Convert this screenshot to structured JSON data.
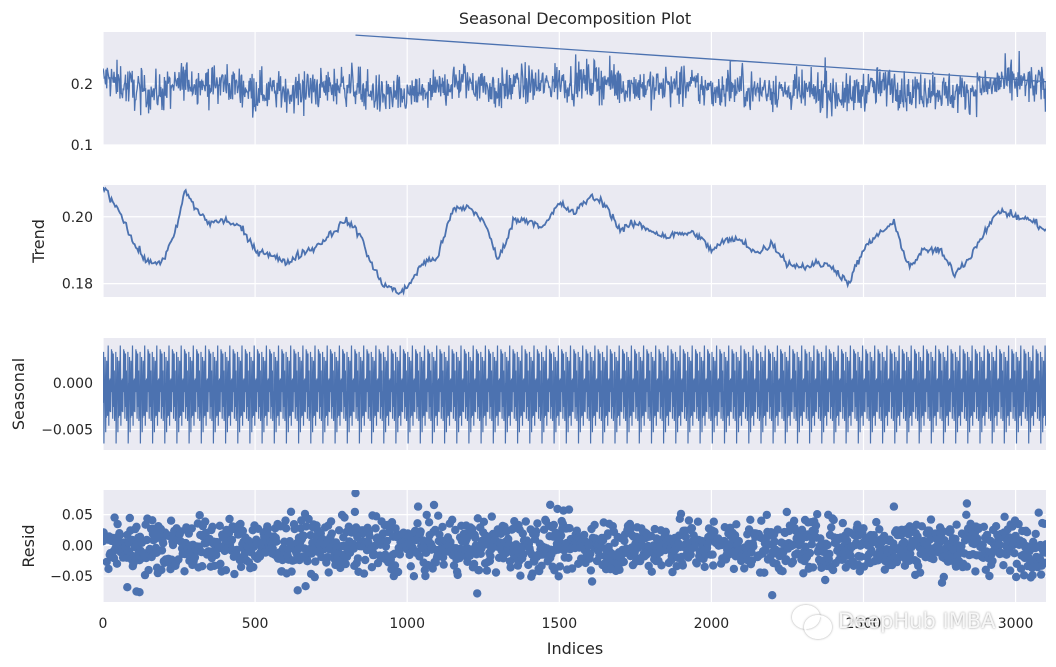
{
  "chart_data": [
    {
      "type": "line",
      "title": "Seasonal Decomposition Plot",
      "ylabel": "",
      "xlim": [
        0,
        3100
      ],
      "ylim": [
        0.1,
        0.285
      ],
      "yticks": [
        {
          "value": 0.1,
          "label": "0.1"
        },
        {
          "value": 0.2,
          "label": "0.2"
        }
      ],
      "series": [
        {
          "x": [
            0,
            100,
            200,
            300,
            400,
            500,
            600,
            700,
            800,
            900,
            1000,
            1100,
            1200,
            1300,
            1400,
            1500,
            1600,
            1700,
            1800,
            1900,
            2000,
            2100,
            2200,
            2300,
            2400,
            2500,
            2600,
            2700,
            2800,
            2900,
            3000,
            3100
          ],
          "y": [
            0.21,
            0.19,
            0.2,
            0.2,
            0.19,
            0.19,
            0.19,
            0.19,
            0.2,
            0.19,
            0.18,
            0.19,
            0.2,
            0.2,
            0.19,
            0.2,
            0.2,
            0.2,
            0.19,
            0.19,
            0.19,
            0.19,
            0.19,
            0.19,
            0.18,
            0.19,
            0.19,
            0.19,
            0.19,
            0.2,
            0.2,
            0.2
          ]
        }
      ]
    },
    {
      "type": "line",
      "ylabel": "Trend",
      "xlim": [
        0,
        3100
      ],
      "ylim": [
        0.176,
        0.2095
      ],
      "yticks": [
        {
          "value": 0.18,
          "label": "0.18"
        },
        {
          "value": 0.2,
          "label": "0.20"
        }
      ],
      "series": [
        {
          "x": [
            0,
            30,
            60,
            100,
            150,
            200,
            240,
            270,
            300,
            350,
            400,
            450,
            500,
            550,
            600,
            650,
            700,
            750,
            800,
            850,
            880,
            920,
            960,
            980,
            1000,
            1050,
            1100,
            1150,
            1200,
            1250,
            1300,
            1350,
            1400,
            1450,
            1500,
            1550,
            1600,
            1650,
            1700,
            1750,
            1800,
            1850,
            1900,
            1950,
            2000,
            2050,
            2100,
            2150,
            2200,
            2250,
            2300,
            2350,
            2400,
            2450,
            2500,
            2550,
            2600,
            2650,
            2700,
            2750,
            2800,
            2850,
            2900,
            2950,
            3000,
            3050,
            3100
          ],
          "y": [
            0.209,
            0.205,
            0.201,
            0.192,
            0.186,
            0.187,
            0.196,
            0.208,
            0.203,
            0.198,
            0.199,
            0.197,
            0.19,
            0.189,
            0.186,
            0.189,
            0.191,
            0.195,
            0.199,
            0.194,
            0.186,
            0.18,
            0.178,
            0.177,
            0.179,
            0.186,
            0.188,
            0.202,
            0.203,
            0.199,
            0.187,
            0.199,
            0.199,
            0.197,
            0.204,
            0.201,
            0.206,
            0.204,
            0.196,
            0.198,
            0.196,
            0.194,
            0.195,
            0.195,
            0.19,
            0.193,
            0.193,
            0.189,
            0.192,
            0.186,
            0.185,
            0.186,
            0.185,
            0.18,
            0.19,
            0.195,
            0.198,
            0.185,
            0.19,
            0.19,
            0.183,
            0.188,
            0.196,
            0.202,
            0.2,
            0.199,
            0.196
          ]
        }
      ]
    },
    {
      "type": "line",
      "ylabel": "Seasonal",
      "xlim": [
        0,
        3100
      ],
      "ylim": [
        -0.0072,
        0.0048
      ],
      "yticks": [
        {
          "value": -0.005,
          "label": "−0.005"
        },
        {
          "value": 0.0,
          "label": "0.000"
        }
      ],
      "seasonal_period": 40,
      "series": [
        {
          "min": -0.0065,
          "max": 0.004
        }
      ]
    },
    {
      "type": "scatter",
      "ylabel": "Resid",
      "xlim": [
        0,
        3100
      ],
      "ylim": [
        -0.092,
        0.09
      ],
      "yticks": [
        {
          "value": -0.05,
          "label": "−0.05"
        },
        {
          "value": 0.0,
          "label": "0.00"
        },
        {
          "value": 0.05,
          "label": "0.05"
        }
      ],
      "series": [
        {
          "spread": 0.022,
          "outliers": [
            {
              "x": 830,
              "y": 0.085
            },
            {
              "x": 110,
              "y": -0.075
            },
            {
              "x": 120,
              "y": -0.076
            },
            {
              "x": 640,
              "y": -0.073
            },
            {
              "x": 1470,
              "y": 0.066
            },
            {
              "x": 1230,
              "y": -0.078
            },
            {
              "x": 2200,
              "y": -0.081
            },
            {
              "x": 2600,
              "y": 0.063
            },
            {
              "x": 2840,
              "y": 0.068
            },
            {
              "x": 80,
              "y": -0.068
            }
          ]
        }
      ]
    }
  ],
  "xaxis": {
    "label": "Indices",
    "xticks": [
      {
        "value": 0,
        "label": "0"
      },
      {
        "value": 500,
        "label": "500"
      },
      {
        "value": 1000,
        "label": "1000"
      },
      {
        "value": 1500,
        "label": "1500"
      },
      {
        "value": 2000,
        "label": "2000"
      },
      {
        "value": 2500,
        "label": "2500"
      },
      {
        "value": 3000,
        "label": "3000"
      }
    ]
  },
  "colors": {
    "background": "#eaeaf2",
    "grid": "#ffffff",
    "line": "#4c72b0",
    "text": "#262626"
  },
  "watermark": {
    "text": "DeepHub IMBA",
    "icon": "wechat-icon"
  }
}
